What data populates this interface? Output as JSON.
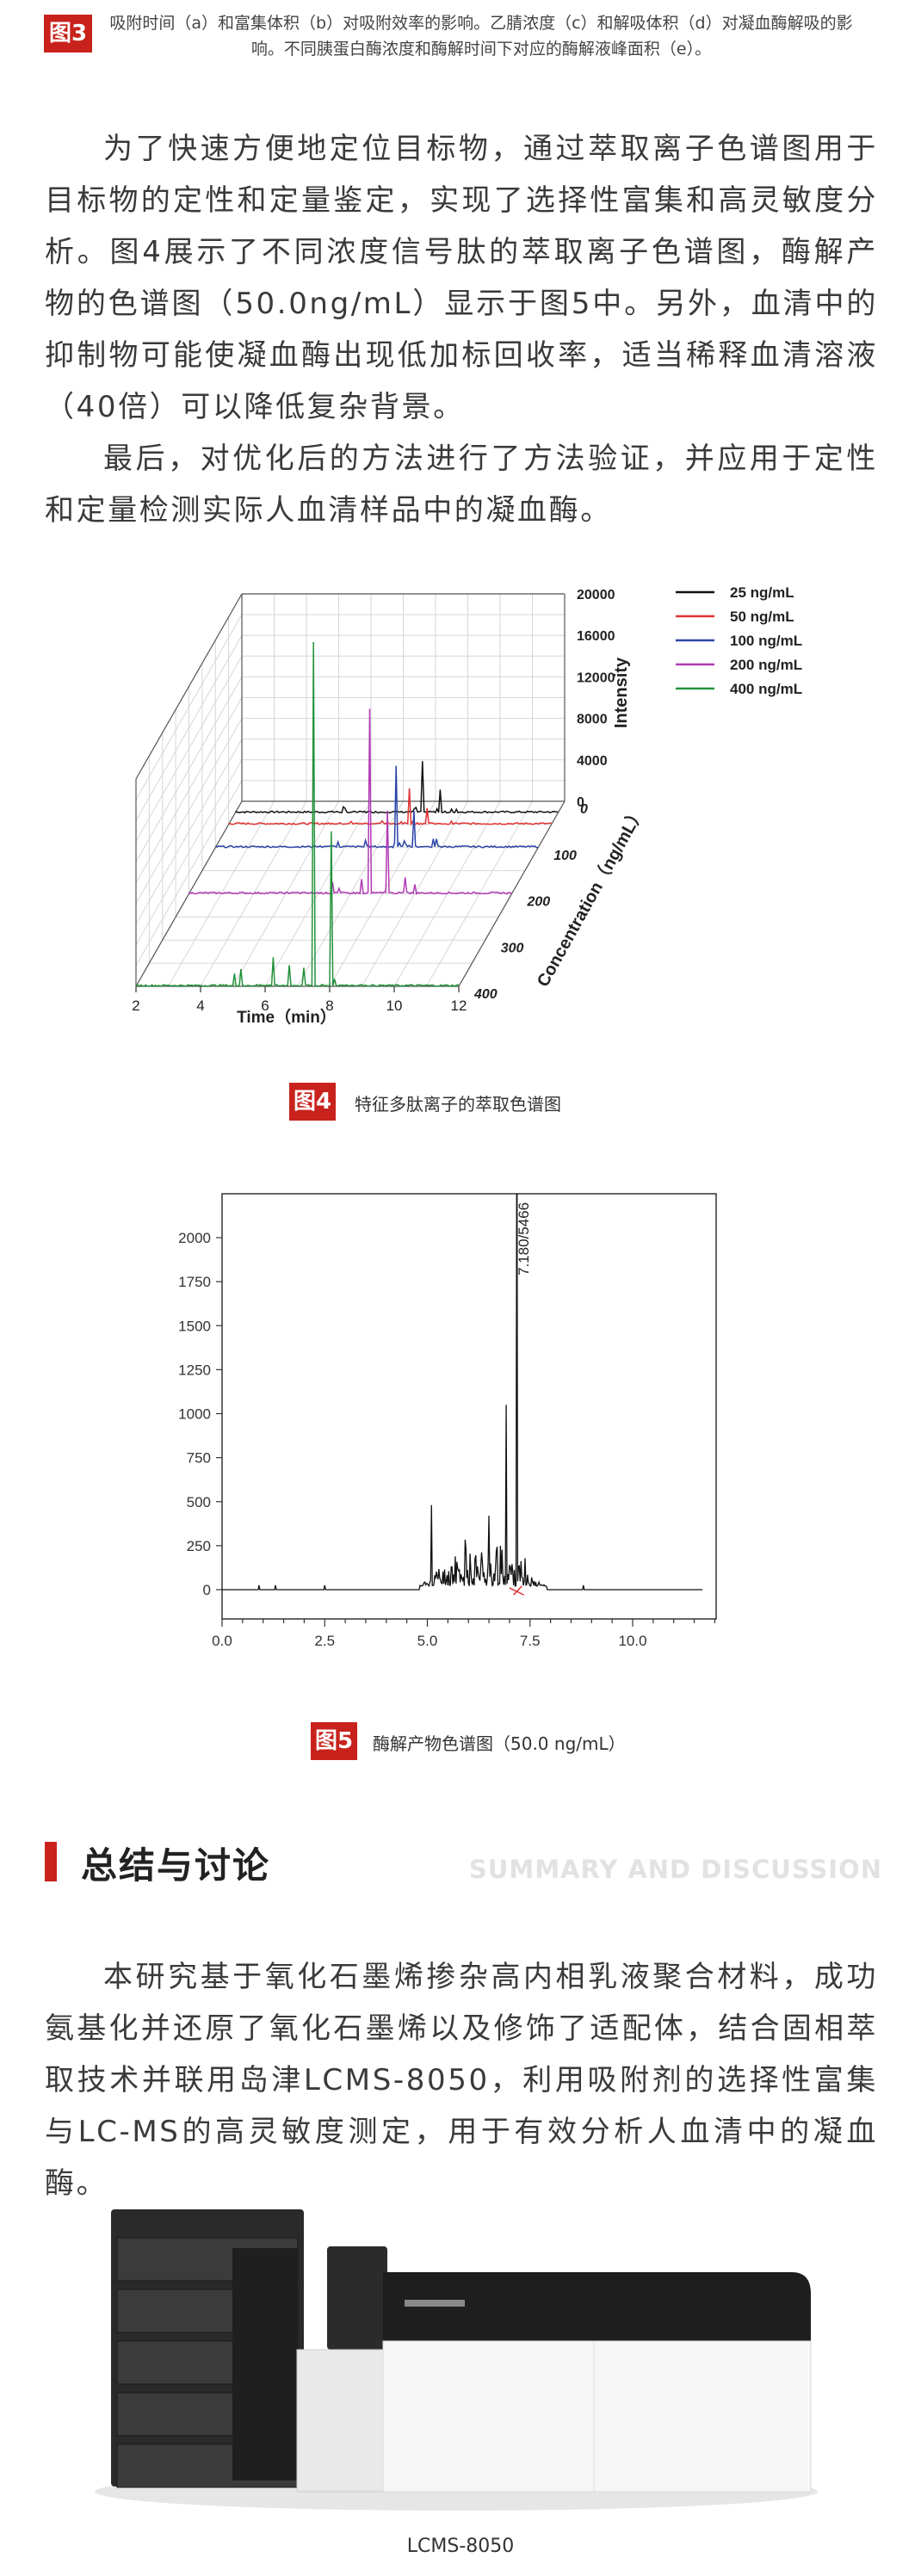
{
  "figure3_caption": {
    "badge": "图3",
    "text": "吸附时间（a）和富集体积（b）对吸附效率的影响。乙腈浓度（c）和解吸体积（d）对凝血酶解吸的影响。不同胰蛋白酶浓度和酶解时间下对应的酶解液峰面积（e）。"
  },
  "body_paragraphs": [
    "为了快速方便地定位目标物，通过萃取离子色谱图用于目标物的定性和定量鉴定，实现了选择性富集和高灵敏度分析。图4展示了不同浓度信号肽的萃取离子色谱图，酶解产物的色谱图（50.0ng/mL）显示于图5中。另外，血清中的抑制物可能使凝血酶出现低加标回收率，适当稀释血清溶液（40倍）可以降低复杂背景。",
    "最后，对优化后的方法进行了方法验证，并应用于定性和定量检测实际人血清样品中的凝血酶。"
  ],
  "figure4": {
    "time_ticks": [
      "2",
      "4",
      "6",
      "8",
      "10",
      "12"
    ],
    "intensity_ticks": [
      "0",
      "4000",
      "8000",
      "12000",
      "16000",
      "20000"
    ],
    "concentration_ticks": [
      "0",
      "100",
      "200",
      "300",
      "400"
    ],
    "x_label": "Time（min）",
    "y_label": "Intensity",
    "z_label": "Concentration（ng/mL）",
    "legend": [
      {
        "name": "25  ng/mL",
        "color": "#111111"
      },
      {
        "name": "50  ng/mL",
        "color": "#e03131"
      },
      {
        "name": "100 ng/mL",
        "color": "#2b44a8"
      },
      {
        "name": "200 ng/mL",
        "color": "#b03ab5"
      },
      {
        "name": "400 ng/mL",
        "color": "#23923a"
      }
    ],
    "caption": {
      "badge": "图4",
      "text": "特征多肽离子的萃取色谱图"
    }
  },
  "figure5": {
    "yticks": [
      "0",
      "250",
      "500",
      "750",
      "1000",
      "1250",
      "1500",
      "1750",
      "2000"
    ],
    "xticks": [
      "0.0",
      "2.5",
      "5.0",
      "7.5",
      "10.0"
    ],
    "peak_label": "7.180/5466",
    "caption": {
      "badge": "图5",
      "text": "酶解产物色谱图（50.0 ng/mL）"
    }
  },
  "section": {
    "title": "总结与讨论",
    "subtitle": "SUMMARY AND DISCUSSION"
  },
  "summary_paragraph": "本研究基于氧化石墨烯掺杂高内相乳液聚合材料，成功氨基化并还原了氧化石墨烯以及修饰了适配体，结合固相萃取技术并联用岛津LCMS-8050，利用吸附剂的选择性富集与LC-MS的高灵敏度测定，用于有效分析人血清中的凝血酶。",
  "image_caption": "LCMS-8050"
}
